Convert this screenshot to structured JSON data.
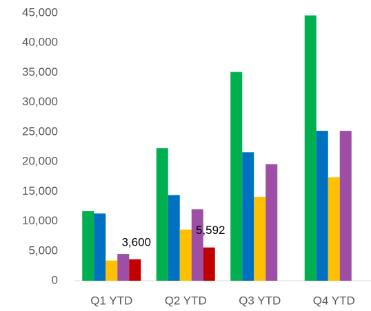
{
  "chart_data": {
    "type": "bar",
    "categories": [
      "Q1 YTD",
      "Q2 YTD",
      "Q3 YTD",
      "Q4 YTD"
    ],
    "series": [
      {
        "color": "#00b050",
        "values": [
          11700,
          22300,
          35100,
          44600
        ]
      },
      {
        "color": "#0070c0",
        "values": [
          11300,
          14400,
          21600,
          25200
        ]
      },
      {
        "color": "#ffc000",
        "values": [
          3400,
          8600,
          14100,
          17400
        ]
      },
      {
        "color": "#9e4fa5",
        "values": [
          4500,
          12000,
          19600,
          25200
        ]
      },
      {
        "color": "#c00000",
        "values": [
          3600,
          5592,
          null,
          null
        ],
        "value_labels": [
          "3,600",
          "5,592",
          null,
          null
        ]
      }
    ],
    "ylim": [
      0,
      45000
    ],
    "yticks": [
      0,
      {
        "value": 5000,
        "label": "5,000"
      },
      {
        "value": 10000,
        "label": "10,000"
      },
      {
        "value": 15000,
        "label": "15,000"
      },
      {
        "value": 20000,
        "label": "20,000"
      },
      {
        "value": 25000,
        "label": "25,000"
      },
      {
        "value": 30000,
        "label": "30,000"
      },
      {
        "value": 35000,
        "label": "35,000"
      },
      {
        "value": 40000,
        "label": "40,000"
      },
      {
        "value": 45000,
        "label": "45,000"
      }
    ],
    "grid": false
  }
}
